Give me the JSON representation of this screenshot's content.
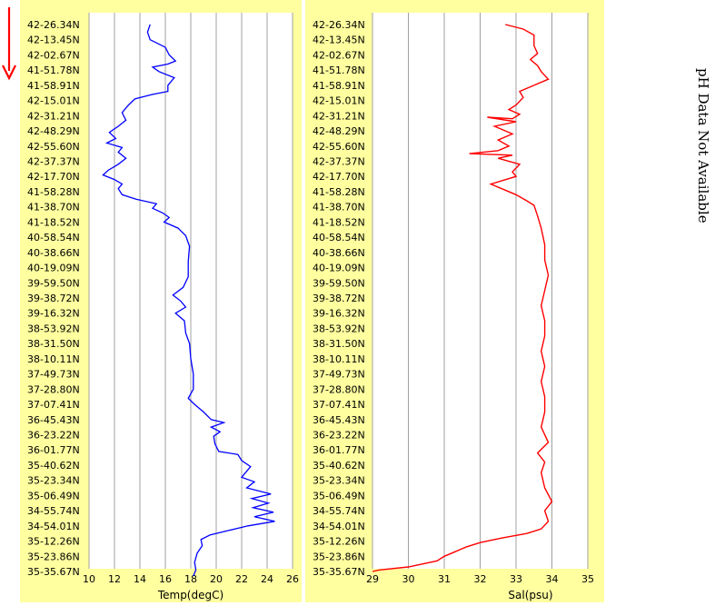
{
  "ph_note": "pH Data Not Available",
  "colors": {
    "background": "#ffffa0",
    "grid": "#a0a0a0",
    "temp_line": "#0000ff",
    "sal_line": "#ff0000",
    "arrow": "#ff0000"
  },
  "chart_data": [
    {
      "type": "line",
      "xlabel": "Temp(degC)",
      "ylabel": "",
      "xlim": [
        10,
        26
      ],
      "xticks": [
        "10",
        "12",
        "14",
        "16",
        "18",
        "20",
        "22",
        "24",
        "26"
      ],
      "categories": [
        "42-26.34N",
        "42-13.45N",
        "42-02.67N",
        "41-51.78N",
        "41-58.91N",
        "42-15.01N",
        "42-31.21N",
        "42-48.29N",
        "42-55.60N",
        "42-37.37N",
        "42-17.70N",
        "41-58.28N",
        "41-38.70N",
        "41-18.52N",
        "40-58.54N",
        "40-38.66N",
        "40-19.09N",
        "39-59.50N",
        "39-38.72N",
        "39-16.32N",
        "38-53.92N",
        "38-31.50N",
        "38-10.11N",
        "37-49.73N",
        "37-28.80N",
        "37-07.41N",
        "36-45.43N",
        "36-23.22N",
        "36-01.77N",
        "35-40.62N",
        "35-23.34N",
        "35-06.49N",
        "34-55.74N",
        "34-54.01N",
        "35-12.26N",
        "35-23.86N",
        "35-35.67N"
      ],
      "series": [
        {
          "name": "",
          "color": "#0000ff",
          "values": [
            [
              14.8,
              0
            ],
            [
              14.6,
              0.5
            ],
            [
              14.8,
              1.0
            ],
            [
              16.0,
              1.5
            ],
            [
              16.3,
              2.0
            ],
            [
              16.8,
              2.4
            ],
            [
              16.2,
              2.6
            ],
            [
              15.0,
              2.8
            ],
            [
              15.5,
              3.1
            ],
            [
              16.7,
              3.5
            ],
            [
              16.2,
              4.0
            ],
            [
              16.2,
              4.4
            ],
            [
              15.0,
              4.6
            ],
            [
              13.6,
              4.9
            ],
            [
              13.1,
              5.3
            ],
            [
              12.6,
              5.8
            ],
            [
              12.9,
              6.3
            ],
            [
              12.3,
              6.7
            ],
            [
              11.6,
              7.1
            ],
            [
              12.1,
              7.5
            ],
            [
              11.4,
              7.8
            ],
            [
              12.6,
              8.1
            ],
            [
              12.3,
              8.4
            ],
            [
              12.9,
              8.8
            ],
            [
              12.3,
              9.2
            ],
            [
              11.5,
              9.6
            ],
            [
              11.1,
              9.9
            ],
            [
              12.0,
              10.2
            ],
            [
              12.6,
              10.5
            ],
            [
              12.3,
              10.8
            ],
            [
              12.6,
              11.2
            ],
            [
              13.7,
              11.5
            ],
            [
              15.3,
              11.8
            ],
            [
              15.0,
              12.1
            ],
            [
              15.8,
              12.4
            ],
            [
              16.3,
              12.7
            ],
            [
              15.9,
              13.0
            ],
            [
              17.0,
              13.4
            ],
            [
              17.6,
              13.9
            ],
            [
              17.9,
              14.6
            ],
            [
              17.8,
              15.6
            ],
            [
              17.8,
              16.6
            ],
            [
              17.4,
              17.3
            ],
            [
              16.6,
              17.8
            ],
            [
              17.2,
              18.2
            ],
            [
              17.6,
              18.6
            ],
            [
              16.8,
              19.0
            ],
            [
              17.5,
              19.5
            ],
            [
              17.6,
              20.3
            ],
            [
              17.9,
              21.0
            ],
            [
              18.0,
              22.0
            ],
            [
              18.2,
              23.0
            ],
            [
              18.2,
              24.0
            ],
            [
              17.8,
              24.6
            ],
            [
              18.3,
              25.0
            ],
            [
              19.0,
              25.5
            ],
            [
              19.6,
              26.0
            ],
            [
              20.6,
              26.2
            ],
            [
              19.6,
              26.5
            ],
            [
              20.3,
              26.8
            ],
            [
              19.8,
              27.1
            ],
            [
              19.9,
              27.6
            ],
            [
              20.2,
              28.1
            ],
            [
              21.7,
              28.3
            ],
            [
              22.0,
              28.7
            ],
            [
              22.7,
              29.1
            ],
            [
              22.4,
              29.4
            ],
            [
              22.0,
              29.8
            ],
            [
              23.0,
              30.1
            ],
            [
              22.4,
              30.5
            ],
            [
              24.3,
              30.9
            ],
            [
              22.8,
              31.2
            ],
            [
              24.1,
              31.5
            ],
            [
              22.9,
              31.8
            ],
            [
              24.5,
              32.1
            ],
            [
              23.0,
              32.4
            ],
            [
              24.6,
              32.7
            ],
            [
              22.5,
              33.0
            ],
            [
              21.0,
              33.3
            ],
            [
              19.5,
              33.6
            ],
            [
              18.8,
              33.9
            ],
            [
              18.9,
              34.3
            ],
            [
              18.5,
              34.8
            ],
            [
              18.3,
              35.4
            ],
            [
              18.4,
              35.9
            ],
            [
              18.2,
              36.3
            ]
          ]
        }
      ]
    },
    {
      "type": "line",
      "xlabel": "Sal(psu)",
      "ylabel": "",
      "xlim": [
        29,
        35
      ],
      "xticks": [
        "29",
        "30",
        "31",
        "32",
        "33",
        "34",
        "35"
      ],
      "categories": [
        "42-26.34N",
        "42-13.45N",
        "42-02.67N",
        "41-51.78N",
        "41-58.91N",
        "42-15.01N",
        "42-31.21N",
        "42-48.29N",
        "42-55.60N",
        "42-37.37N",
        "42-17.70N",
        "41-58.28N",
        "41-38.70N",
        "41-18.52N",
        "40-58.54N",
        "40-38.66N",
        "40-19.09N",
        "39-59.50N",
        "39-38.72N",
        "39-16.32N",
        "38-53.92N",
        "38-31.50N",
        "38-10.11N",
        "37-49.73N",
        "37-28.80N",
        "37-07.41N",
        "36-45.43N",
        "36-23.22N",
        "36-01.77N",
        "35-40.62N",
        "35-23.34N",
        "35-06.49N",
        "34-55.74N",
        "34-54.01N",
        "35-12.26N",
        "35-23.86N",
        "35-35.67N"
      ],
      "series": [
        {
          "name": "",
          "color": "#ff0000",
          "values": [
            [
              32.7,
              0
            ],
            [
              33.2,
              0.3
            ],
            [
              33.5,
              0.7
            ],
            [
              33.5,
              1.4
            ],
            [
              33.6,
              1.9
            ],
            [
              33.4,
              2.3
            ],
            [
              33.6,
              2.7
            ],
            [
              33.7,
              3.1
            ],
            [
              33.9,
              3.6
            ],
            [
              33.5,
              4.0
            ],
            [
              33.1,
              4.4
            ],
            [
              33.2,
              4.8
            ],
            [
              33.0,
              5.3
            ],
            [
              32.8,
              5.6
            ],
            [
              33.1,
              5.9
            ],
            [
              32.9,
              6.2
            ],
            [
              32.2,
              6.1
            ],
            [
              33.0,
              6.4
            ],
            [
              32.4,
              6.7
            ],
            [
              32.9,
              7.2
            ],
            [
              32.5,
              7.6
            ],
            [
              32.8,
              8.0
            ],
            [
              32.5,
              8.3
            ],
            [
              31.7,
              8.5
            ],
            [
              32.9,
              8.6
            ],
            [
              32.5,
              8.8
            ],
            [
              33.1,
              9.2
            ],
            [
              32.9,
              9.7
            ],
            [
              33.0,
              10.0
            ],
            [
              32.3,
              10.5
            ],
            [
              32.7,
              10.9
            ],
            [
              33.0,
              11.2
            ],
            [
              33.3,
              11.6
            ],
            [
              33.5,
              11.9
            ],
            [
              33.6,
              12.6
            ],
            [
              33.7,
              13.4
            ],
            [
              33.8,
              14.5
            ],
            [
              33.8,
              15.5
            ],
            [
              33.9,
              16.5
            ],
            [
              33.8,
              17.5
            ],
            [
              33.7,
              18.5
            ],
            [
              33.8,
              19.5
            ],
            [
              33.8,
              20.5
            ],
            [
              33.7,
              21.5
            ],
            [
              33.8,
              22.5
            ],
            [
              33.7,
              23.5
            ],
            [
              33.8,
              24.5
            ],
            [
              33.8,
              25.5
            ],
            [
              33.7,
              26.5
            ],
            [
              33.9,
              27.5
            ],
            [
              33.6,
              28.2
            ],
            [
              33.8,
              28.8
            ],
            [
              33.7,
              29.5
            ],
            [
              33.8,
              30.5
            ],
            [
              34.0,
              31.4
            ],
            [
              33.8,
              32.0
            ],
            [
              33.9,
              32.7
            ],
            [
              33.7,
              33.2
            ],
            [
              33.3,
              33.5
            ],
            [
              32.6,
              33.8
            ],
            [
              32.0,
              34.1
            ],
            [
              31.6,
              34.4
            ],
            [
              31.3,
              34.7
            ],
            [
              31.0,
              35.0
            ],
            [
              30.8,
              35.3
            ],
            [
              30.0,
              35.7
            ],
            [
              29.2,
              35.9
            ],
            [
              29.0,
              36.0
            ]
          ]
        }
      ]
    }
  ]
}
